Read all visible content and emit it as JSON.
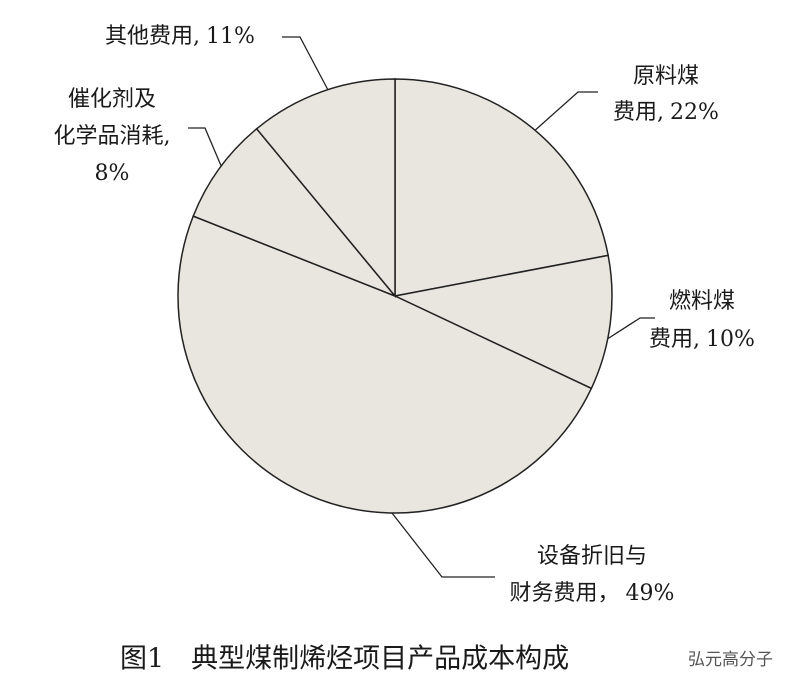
{
  "chart_data": {
    "type": "pie",
    "title": "图1　典型煤制烯烃项目产品成本构成",
    "watermark": "弘元高分子",
    "categories": [
      [
        "原料煤",
        "费用,"
      ],
      [
        "燃料煤",
        "费用,"
      ],
      [
        "设备折旧与",
        "财务费用，"
      ],
      [
        "催化剂及",
        "化学品消耗,"
      ],
      [
        "其他费用,"
      ]
    ],
    "values": [
      22,
      10,
      49,
      8,
      11
    ],
    "value_labels": [
      "22%",
      "10%",
      "49%",
      "8%",
      "11%"
    ],
    "color": "#e8e6de"
  }
}
